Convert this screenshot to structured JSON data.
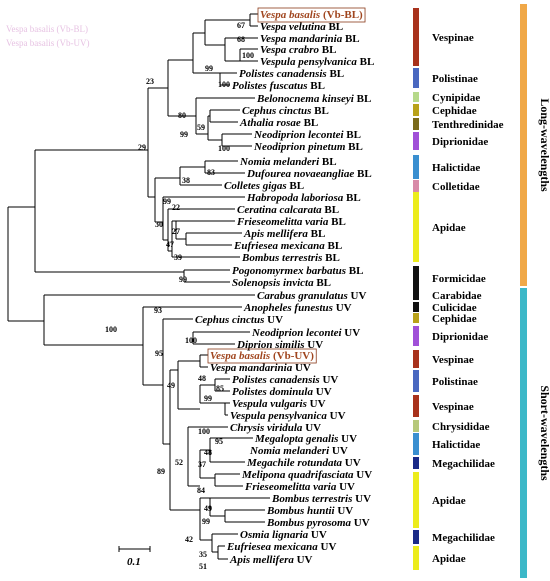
{
  "figure": {
    "scale_label": "0.1",
    "band_long": "Long-wavelengths",
    "band_short": "Short-wavelengths",
    "band_long_color": "#f0a848",
    "band_short_color": "#3cb8c8"
  },
  "leaves": [
    {
      "genus": "Vespa basalis",
      "tag": "(Vb-BL)",
      "highlight": true
    },
    {
      "genus": "Vespa velutina",
      "tag": "BL"
    },
    {
      "genus": "Vespa mandarinia",
      "tag": "BL"
    },
    {
      "genus": "Vespa crabro",
      "tag": "BL"
    },
    {
      "genus": "Vespula pensylvanica",
      "tag": "BL"
    },
    {
      "genus": "Polistes canadensis",
      "tag": "BL"
    },
    {
      "genus": "Polistes fuscatus",
      "tag": "BL"
    },
    {
      "genus": "Belonocnema kinseyi",
      "tag": "BL"
    },
    {
      "genus": "Cephus cinctus",
      "tag": "BL"
    },
    {
      "genus": "Athalia rosae",
      "tag": "BL"
    },
    {
      "genus": "Neodiprion lecontei",
      "tag": "BL"
    },
    {
      "genus": "Neodiprion pinetum",
      "tag": "BL"
    },
    {
      "genus": "Nomia melanderi",
      "tag": "BL"
    },
    {
      "genus": "Dufourea novaeangliae",
      "tag": "BL"
    },
    {
      "genus": "Colletes gigas",
      "tag": "BL"
    },
    {
      "genus": "Habropoda laboriosa",
      "tag": "BL"
    },
    {
      "genus": "Ceratina calcarata",
      "tag": "BL"
    },
    {
      "genus": "Frieseomelitta varia",
      "tag": "BL"
    },
    {
      "genus": "Apis mellifera",
      "tag": "BL"
    },
    {
      "genus": "Eufriesea mexicana",
      "tag": "BL"
    },
    {
      "genus": "Bombus terrestris",
      "tag": "BL"
    },
    {
      "genus": "Pogonomyrmex barbatus",
      "tag": "BL"
    },
    {
      "genus": "Solenopsis invicta",
      "tag": "BL"
    },
    {
      "genus": "Carabus granulatus",
      "tag": "UV"
    },
    {
      "genus": "Anopheles funestus",
      "tag": "UV"
    },
    {
      "genus": "Cephus cinctus",
      "tag": "UV"
    },
    {
      "genus": "Neodiprion lecontei",
      "tag": "UV"
    },
    {
      "genus": "Diprion similis",
      "tag": "UV"
    },
    {
      "genus": "Vespa basalis",
      "tag": "(Vb-UV)",
      "highlight": true
    },
    {
      "genus": "Vespa mandarinia",
      "tag": "UV"
    },
    {
      "genus": "Polistes canadensis",
      "tag": "UV"
    },
    {
      "genus": "Polistes dominula",
      "tag": "UV"
    },
    {
      "genus": "Vespula vulgaris",
      "tag": "UV"
    },
    {
      "genus": "Vespula pensylvanica",
      "tag": "UV"
    },
    {
      "genus": "Chrysis viridula",
      "tag": "UV"
    },
    {
      "genus": "Megalopta genalis",
      "tag": "UV"
    },
    {
      "genus": "Nomia melanderi",
      "tag": "UV"
    },
    {
      "genus": "Megachile rotundata",
      "tag": "UV"
    },
    {
      "genus": "Melipona quadrifasciata",
      "tag": "UV"
    },
    {
      "genus": "Frieseomelitta varia",
      "tag": "UV"
    },
    {
      "genus": "Bombus terrestris",
      "tag": "UV"
    },
    {
      "genus": "Bombus huntii",
      "tag": "UV"
    },
    {
      "genus": "Bombus pyrosoma",
      "tag": "UV"
    },
    {
      "genus": "Osmia lignaria",
      "tag": "UV"
    },
    {
      "genus": "Eufriesea mexicana",
      "tag": "UV"
    },
    {
      "genus": "Apis mellifera",
      "tag": "UV"
    }
  ],
  "families": [
    {
      "name": "Vespinae",
      "color": "#a8321c"
    },
    {
      "name": "Polistinae",
      "color": "#4a68c0"
    },
    {
      "name": "Cynipidae",
      "color": "#b6d98a"
    },
    {
      "name": "Cephidae",
      "color": "#b9a21a"
    },
    {
      "name": "Tenthredinidae",
      "color": "#7a6a1a"
    },
    {
      "name": "Diprionidae",
      "color": "#a050d8"
    },
    {
      "name": "Halictidae",
      "color": "#3a8fd0"
    },
    {
      "name": "Colletidae",
      "color": "#d88aa8"
    },
    {
      "name": "Apidae",
      "color": "#ecec1c"
    },
    {
      "name": "Formicidae",
      "color": "#111111"
    },
    {
      "name": "Carabidae",
      "color": "#111111"
    },
    {
      "name": "Culicidae",
      "color": "#111111"
    },
    {
      "name": "Cephidae",
      "color": "#b9a21a"
    },
    {
      "name": "Diprionidae",
      "color": "#a050d8"
    },
    {
      "name": "Vespinae",
      "color": "#a8321c"
    },
    {
      "name": "Polistinae",
      "color": "#4a68c0"
    },
    {
      "name": "Vespinae",
      "color": "#a8321c"
    },
    {
      "name": "Chrysididae",
      "color": "#b6c87a"
    },
    {
      "name": "Halictidae",
      "color": "#3a8fd0"
    },
    {
      "name": "Megachilidae",
      "color": "#1a2a88"
    },
    {
      "name": "Apidae",
      "color": "#ecec1c"
    },
    {
      "name": "Megachilidae",
      "color": "#1a2a88"
    },
    {
      "name": "Apidae",
      "color": "#ecec1c"
    }
  ],
  "bootstrap": [
    "67",
    "68",
    "100",
    "99",
    "100",
    "23",
    "80",
    "59",
    "99",
    "100",
    "29",
    "83",
    "38",
    "99",
    "22",
    "30",
    "27",
    "47",
    "39",
    "99",
    "93",
    "100",
    "100",
    "95",
    "48",
    "85",
    "49",
    "99",
    "95",
    "48",
    "37",
    "52",
    "89",
    "84",
    "49",
    "99",
    "42",
    "35",
    "51",
    "100"
  ]
}
